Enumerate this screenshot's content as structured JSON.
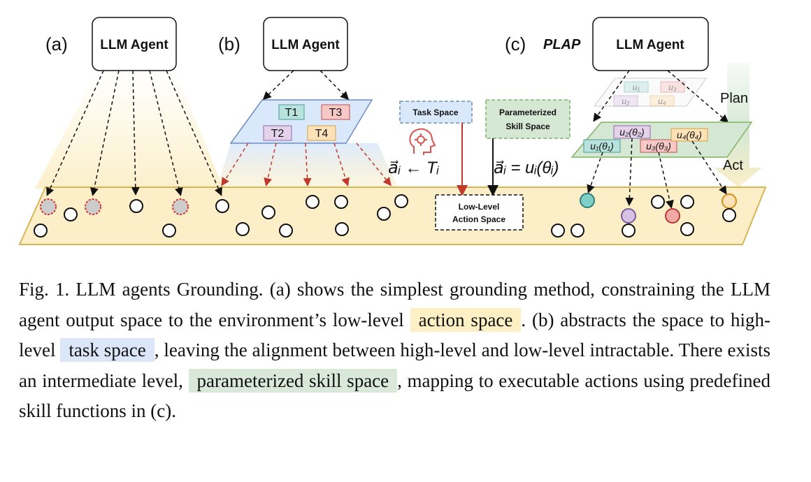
{
  "figure": {
    "panel_labels": [
      "(a)",
      "(b)",
      "(c)"
    ],
    "plap_label": "PLAP",
    "agent_label": "LLM Agent",
    "tasks": [
      "T1",
      "T3",
      "T2",
      "T4"
    ],
    "task_space_label": "Task Space",
    "skill_space_label_1": "Parameterized",
    "skill_space_label_2": "Skill Space",
    "low_level_label_1": "Low-Level",
    "low_level_label_2": "Action Space",
    "eq_task": "a⃗ᵢ ← Tᵢ",
    "eq_skill": "a⃗ᵢ = uᵢ(θᵢ)",
    "faded_skills": [
      "u₁",
      "u₃",
      "u₂",
      "u₄"
    ],
    "skills": [
      "u₁(θ₁)",
      "u₂(θ₂)",
      "u₃(θ₃)",
      "u₄(θ₄)"
    ],
    "plan_label": "Plan",
    "act_label": "Act",
    "colors": {
      "yellow_plane": "#fcefc8",
      "yellow_border": "#d6b656",
      "blue_plane": "#dae8fc",
      "blue_border": "#6c8ebf",
      "green_plane": "#d5e8d4",
      "green_border": "#82b366",
      "red_arrow": "#c0392b"
    }
  },
  "caption": {
    "part1": "Fig. 1.  LLM agents Grounding. (a) shows the simplest grounding method, constraining the LLM agent output space to the environment’s low-level ",
    "hl_action": "action space",
    "part2": ". (b) abstracts the space to high-level ",
    "hl_task": "task space",
    "part3": ", leaving the alignment between high-level and low-level intractable. There exists an intermediate level, ",
    "hl_skill": "parameterized skill space",
    "part4": ", mapping to executable actions using predefined skill functions in (c)."
  }
}
